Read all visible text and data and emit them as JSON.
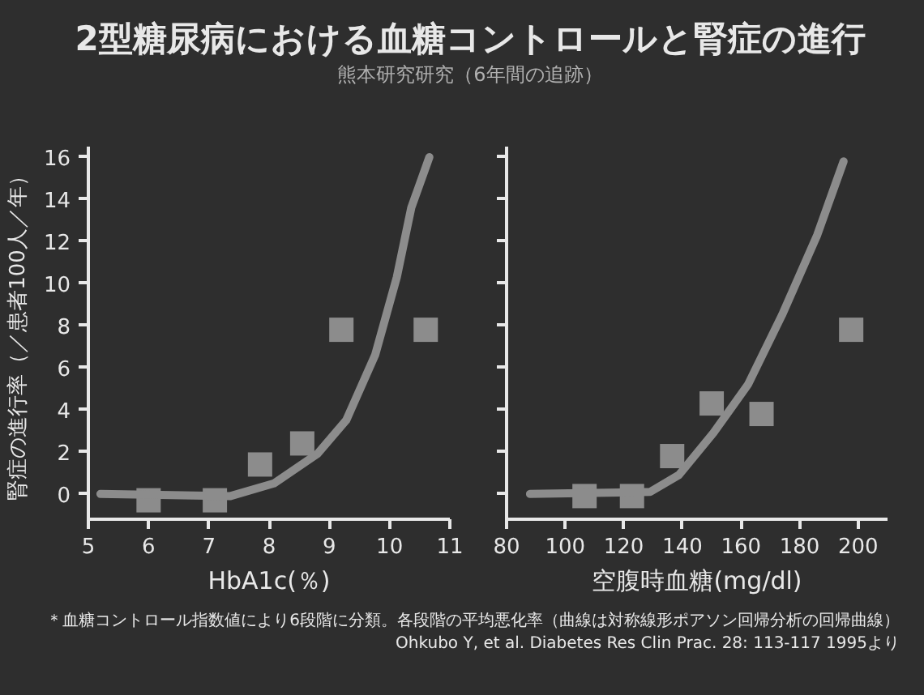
{
  "chart_data": [
    {
      "type": "scatter",
      "title": "2型糖尿病における血糖コントロールと腎症の進行",
      "subtitle": "熊本研究研究（6年間の追跡）",
      "xlabel": "HbA1c(％)",
      "ylabel": "腎症の進行率（／患者100人／年）",
      "xlim": [
        5,
        11
      ],
      "xticks": [
        5,
        6,
        7,
        8,
        9,
        10,
        11
      ],
      "ylim": [
        -1.2,
        16.5
      ],
      "yticks": [
        0,
        2,
        4,
        6,
        8,
        10,
        12,
        14,
        16
      ],
      "grid": false,
      "series": [
        {
          "type": "scatter",
          "marker": "square",
          "color": "#8c8c8c",
          "x": [
            6.0,
            7.1,
            7.85,
            8.55,
            9.2,
            10.6
          ],
          "values": [
            -0.3,
            -0.3,
            1.4,
            2.4,
            7.8,
            7.8
          ]
        },
        {
          "type": "line",
          "color": "#8c8c8c",
          "x": [
            5.2,
            7.36,
            8.08,
            8.8,
            9.28,
            9.76,
            10.12,
            10.36,
            10.66
          ],
          "values": [
            0,
            -0.1,
            0.5,
            1.9,
            3.5,
            6.6,
            10.3,
            13.6,
            16
          ]
        }
      ]
    },
    {
      "type": "scatter",
      "xlabel": "空腹時血糖(mg/dl)",
      "xlim": [
        80,
        210
      ],
      "xticks": [
        80,
        100,
        120,
        140,
        160,
        180,
        200
      ],
      "ylim": [
        -1.2,
        16.5
      ],
      "yticks": [
        0,
        2,
        4,
        6,
        8,
        10,
        12,
        14,
        16
      ],
      "tick_labels": "x",
      "grid": false,
      "annotations": [
        "＊血糖コントロール指数値により6段階に分類。各段階の平均悪化率（曲線は対称線形ポアソン回帰分析の回帰曲線）",
        "Ohkubo Y, et al. Diabetes Res Clin Prac. 28: 113-117 1995より"
      ],
      "series": [
        {
          "type": "scatter",
          "marker": "square",
          "color": "#8c8c8c",
          "x": [
            106.6,
            122.8,
            136.5,
            150,
            167,
            197.6
          ],
          "values": [
            -0.1,
            -0.1,
            1.8,
            4.3,
            3.8,
            7.8
          ]
        },
        {
          "type": "line",
          "color": "#8c8c8c",
          "x": [
            88,
            129,
            138.8,
            150.6,
            162.4,
            174,
            186,
            195
          ],
          "values": [
            0,
            0.1,
            0.9,
            2.9,
            5.2,
            8.5,
            12.3,
            15.8
          ]
        }
      ]
    }
  ]
}
